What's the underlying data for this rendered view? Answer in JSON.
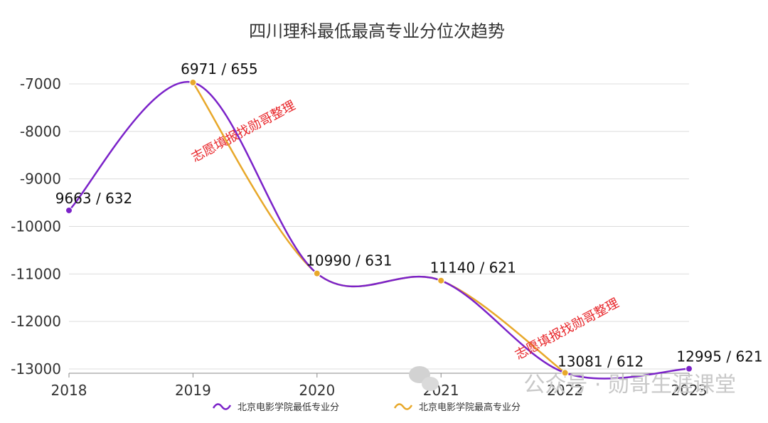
{
  "chart_data": {
    "type": "line",
    "title": "四川理科最低最高专业分位次趋势",
    "categories": [
      "2018",
      "2019",
      "2020",
      "2021",
      "2022",
      "2023"
    ],
    "ylim": [
      -13000,
      -6500
    ],
    "yticks": [
      -7000,
      -8000,
      -9000,
      -10000,
      -11000,
      -12000,
      -13000
    ],
    "grid": true,
    "legend_position": "bottom",
    "series": [
      {
        "name": "北京电影学院最低专业分",
        "color": "#7b22c9",
        "values": [
          -9663,
          -6971,
          -10990,
          -11140,
          -13081,
          -12995
        ]
      },
      {
        "name": "北京电影学院最高专业分",
        "color": "#e8a82a",
        "values": [
          null,
          -6971,
          -10990,
          -11140,
          -13081,
          null
        ]
      }
    ],
    "data_labels": [
      "9663 / 632",
      "6971 / 655",
      "10990 / 631",
      "11140 / 621",
      "13081 / 612",
      "12995 / 621"
    ],
    "watermarks": [
      "志愿填报找勋哥整理",
      "志愿填报找勋哥整理"
    ],
    "brand_text": "公众号 · 勋哥生涯课堂"
  }
}
